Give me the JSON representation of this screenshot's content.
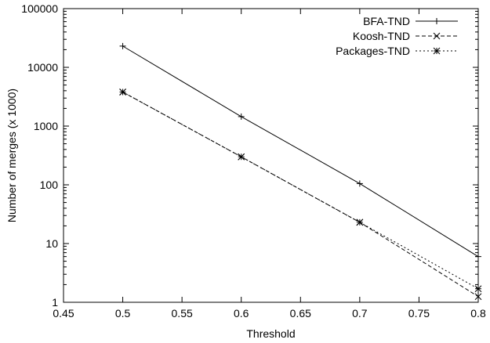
{
  "chart_data": {
    "type": "line",
    "xlabel": "Threshold",
    "ylabel": "Number of merges (x 1000)",
    "xlim": [
      0.45,
      0.8
    ],
    "ylim": [
      1,
      100000
    ],
    "yscale": "log",
    "grid": false,
    "legend_position": "top-right",
    "x_ticks": [
      0.45,
      0.5,
      0.55,
      0.6,
      0.65,
      0.7,
      0.75,
      0.8
    ],
    "x_tick_labels": [
      "0.45",
      "0.5",
      "0.55",
      "0.6",
      "0.65",
      "0.7",
      "0.75",
      "0.8"
    ],
    "y_ticks": [
      1,
      10,
      100,
      1000,
      10000,
      100000
    ],
    "y_tick_labels": [
      "1",
      "10",
      "100",
      "1000",
      "10000",
      "100000"
    ],
    "series": [
      {
        "name": "BFA-TND",
        "x": [
          0.5,
          0.6,
          0.7,
          0.8
        ],
        "values": [
          23000,
          1450,
          105,
          6
        ],
        "line_style": "solid",
        "marker": "plus"
      },
      {
        "name": "Koosh-TND",
        "x": [
          0.5,
          0.6,
          0.7,
          0.8
        ],
        "values": [
          3800,
          300,
          23,
          1.25
        ],
        "line_style": "dashed",
        "marker": "x"
      },
      {
        "name": "Packages-TND",
        "x": [
          0.5,
          0.6,
          0.7,
          0.8
        ],
        "values": [
          3800,
          300,
          23,
          1.7
        ],
        "line_style": "dotted",
        "marker": "star"
      }
    ]
  }
}
